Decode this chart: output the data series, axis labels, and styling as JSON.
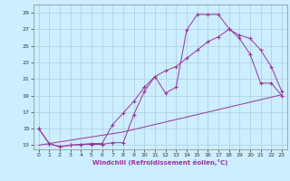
{
  "background_color": "#cceeff",
  "grid_color": "#aaccdd",
  "line_color": "#993399",
  "xlabel": "Windchill (Refroidissement éolien,°C)",
  "xlim": [
    -0.5,
    23.5
  ],
  "ylim": [
    12.5,
    30.0
  ],
  "yticks": [
    13,
    15,
    17,
    19,
    21,
    23,
    25,
    27,
    29
  ],
  "xticks": [
    0,
    1,
    2,
    3,
    4,
    5,
    6,
    7,
    8,
    9,
    10,
    11,
    12,
    13,
    14,
    15,
    16,
    17,
    18,
    19,
    20,
    21,
    22,
    23
  ],
  "curve1_x": [
    0,
    1,
    2,
    3,
    4,
    5,
    6,
    7,
    8,
    9,
    10,
    11,
    12,
    13,
    14,
    15,
    16,
    17,
    18,
    19,
    20,
    21,
    22,
    23
  ],
  "curve1_y": [
    15.0,
    13.2,
    12.8,
    13.0,
    13.1,
    13.1,
    13.1,
    13.3,
    13.3,
    16.7,
    19.5,
    21.3,
    19.3,
    20.0,
    26.9,
    28.8,
    28.8,
    28.8,
    27.1,
    25.9,
    24.0,
    20.5,
    20.5,
    19.0
  ],
  "curve2_x": [
    0,
    1,
    2,
    3,
    4,
    5,
    6,
    7,
    8,
    9,
    10,
    11,
    12,
    13,
    14,
    15,
    16,
    17,
    18,
    19,
    20,
    21,
    22,
    23
  ],
  "curve2_y": [
    15.0,
    13.2,
    12.8,
    13.0,
    13.1,
    13.2,
    13.2,
    15.5,
    16.9,
    18.3,
    20.0,
    21.3,
    22.0,
    22.5,
    23.5,
    24.5,
    25.5,
    26.1,
    27.0,
    26.3,
    25.9,
    24.5,
    22.5,
    19.5
  ],
  "curve3_x": [
    0,
    1,
    2,
    3,
    4,
    5,
    6,
    7,
    8,
    9,
    10,
    11,
    12,
    13,
    14,
    15,
    16,
    17,
    18,
    19,
    20,
    21,
    22,
    23
  ],
  "curve3_y": [
    13.0,
    13.2,
    13.4,
    13.6,
    13.8,
    14.0,
    14.2,
    14.4,
    14.6,
    14.9,
    15.2,
    15.5,
    15.8,
    16.1,
    16.4,
    16.7,
    17.0,
    17.3,
    17.6,
    17.9,
    18.2,
    18.5,
    18.8,
    19.1
  ]
}
